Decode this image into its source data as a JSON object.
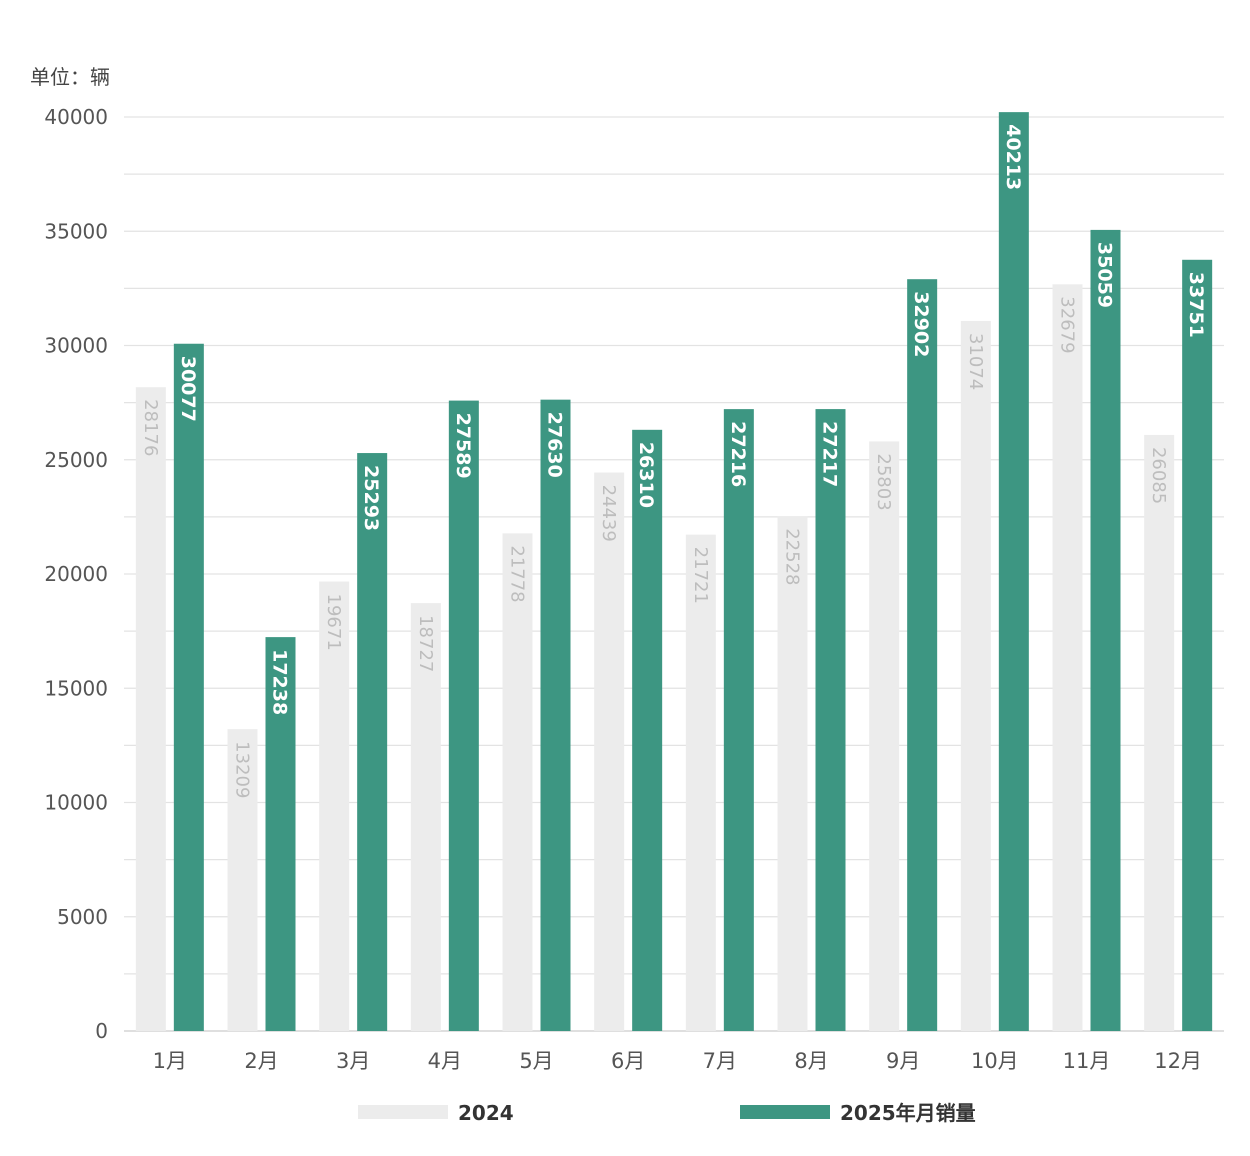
{
  "chart_data": {
    "type": "bar",
    "unit_label": "单位：辆",
    "categories": [
      "1月",
      "2月",
      "3月",
      "4月",
      "5月",
      "6月",
      "7月",
      "8月",
      "9月",
      "10月",
      "11月",
      "12月"
    ],
    "series": [
      {
        "name": "2024",
        "color": "#ececec",
        "values": [
          28176,
          13209,
          19671,
          18727,
          21778,
          24439,
          21721,
          22528,
          25803,
          31074,
          32679,
          26085
        ]
      },
      {
        "name": "2025年月销量",
        "color": "#3d9682",
        "values": [
          30077,
          17238,
          25293,
          27589,
          27630,
          26310,
          27216,
          27217,
          32902,
          40213,
          35059,
          33751
        ]
      }
    ],
    "ylim": [
      0,
      40000
    ],
    "yticks": [
      0,
      5000,
      10000,
      15000,
      20000,
      25000,
      30000,
      35000,
      40000
    ],
    "grid": true,
    "legend_position": "bottom-center"
  }
}
